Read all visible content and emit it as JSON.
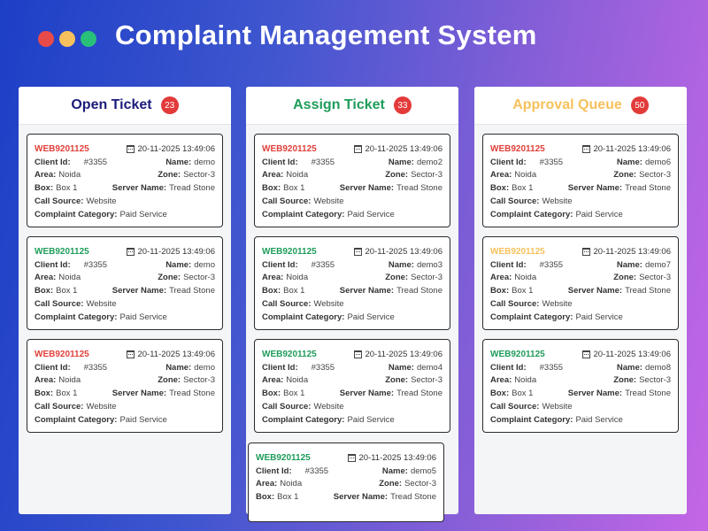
{
  "header": {
    "title": "Complaint Management System",
    "dots": [
      "#e84a4a",
      "#f6c15c",
      "#29c07a"
    ]
  },
  "labels": {
    "client_id": "Client Id:",
    "name": "Name:",
    "area": "Area:",
    "zone": "Zone:",
    "box": "Box:",
    "server_name": "Server Name:",
    "call_source": "Call Source:",
    "complaint_category": "Complaint Category:"
  },
  "colors": {
    "red": "#e0403a",
    "green": "#1e9c5a",
    "yellow": "#f6c15c"
  },
  "columns": [
    {
      "title": "Open Ticket",
      "count": "23",
      "title_color": "#1b1b7a",
      "cards": [
        {
          "id": "WEB9201125",
          "id_color": "#e0403a",
          "date": "20-11-2025 13:49:06",
          "client_id": "#3355",
          "name": "demo",
          "area": "Noida",
          "zone": "Sector-3",
          "box": "Box 1",
          "server_name": "Tread Stone",
          "call_source": "Website",
          "complaint_category": "Paid Service"
        },
        {
          "id": "WEB9201125",
          "id_color": "#1e9c5a",
          "date": "20-11-2025 13:49:06",
          "client_id": "#3355",
          "name": "demo",
          "area": "Noida",
          "zone": "Sector-3",
          "box": "Box 1",
          "server_name": "Tread Stone",
          "call_source": "Website",
          "complaint_category": "Paid Service"
        },
        {
          "id": "WEB9201125",
          "id_color": "#e0403a",
          "date": "20-11-2025 13:49:06",
          "client_id": "#3355",
          "name": "demo",
          "area": "Noida",
          "zone": "Sector-3",
          "box": "Box 1",
          "server_name": "Tread Stone",
          "call_source": "Website",
          "complaint_category": "Paid Service"
        }
      ]
    },
    {
      "title": "Assign Ticket",
      "count": "33",
      "title_color": "#1e9c5a",
      "cards": [
        {
          "id": "WEB9201125",
          "id_color": "#e0403a",
          "date": "20-11-2025 13:49:06",
          "client_id": "#3355",
          "name": "demo2",
          "area": "Noida",
          "zone": "Sector-3",
          "box": "Box 1",
          "server_name": "Tread Stone",
          "call_source": "Website",
          "complaint_category": "Paid Service"
        },
        {
          "id": "WEB9201125",
          "id_color": "#1e9c5a",
          "date": "20-11-2025 13:49:06",
          "client_id": "#3355",
          "name": "demo3",
          "area": "Noida",
          "zone": "Sector-3",
          "box": "Box 1",
          "server_name": "Tread Stone",
          "call_source": "Website",
          "complaint_category": "Paid Service"
        },
        {
          "id": "WEB9201125",
          "id_color": "#1e9c5a",
          "date": "20-11-2025 13:49:06",
          "client_id": "#3355",
          "name": "demo4",
          "area": "Noida",
          "zone": "Sector-3",
          "box": "Box 1",
          "server_name": "Tread Stone",
          "call_source": "Website",
          "complaint_category": "Paid Service"
        }
      ]
    },
    {
      "title": "Approval Queue",
      "count": "50",
      "title_color": "#f6c15c",
      "cards": [
        {
          "id": "WEB9201125",
          "id_color": "#e0403a",
          "date": "20-11-2025 13:49:06",
          "client_id": "#3355",
          "name": "demo6",
          "area": "Noida",
          "zone": "Sector-3",
          "box": "Box 1",
          "server_name": "Tread Stone",
          "call_source": "Website",
          "complaint_category": "Paid Service"
        },
        {
          "id": "WEB9201125",
          "id_color": "#f6c15c",
          "date": "20-11-2025 13:49:06",
          "client_id": "#3355",
          "name": "demo7",
          "area": "Noida",
          "zone": "Sector-3",
          "box": "Box 1",
          "server_name": "Tread Stone",
          "call_source": "Website",
          "complaint_category": "Paid Service"
        },
        {
          "id": "WEB9201125",
          "id_color": "#1e9c5a",
          "date": "20-11-2025 13:49:06",
          "client_id": "#3355",
          "name": "demo8",
          "area": "Noida",
          "zone": "Sector-3",
          "box": "Box 1",
          "server_name": "Tread Stone",
          "call_source": "Website",
          "complaint_category": "Paid Service"
        }
      ]
    }
  ],
  "dragged_card": {
    "id": "WEB9201125",
    "id_color": "#1e9c5a",
    "date": "20-11-2025 13:49:06",
    "client_id": "#3355",
    "name": "demo5",
    "area": "Noida",
    "zone": "Sector-3",
    "box": "Box 1",
    "server_name": "Tread Stone"
  }
}
